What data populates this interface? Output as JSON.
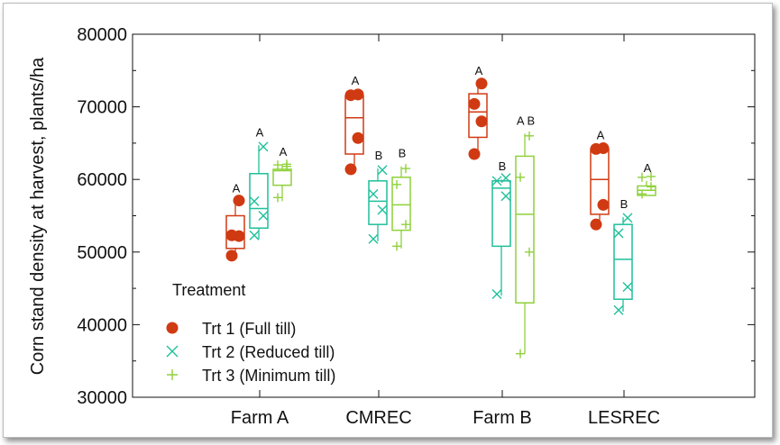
{
  "chart_data": {
    "type": "box",
    "ylabel": "Corn stand density at harvest, plants/ha",
    "ylim": [
      30000,
      80000
    ],
    "yticks": [
      30000,
      40000,
      50000,
      60000,
      70000,
      80000
    ],
    "categories": [
      "Farm A",
      "CMREC",
      "Farm B",
      "LESREC"
    ],
    "legend_title": "Treatment",
    "legend_position": "bottom-left",
    "series": [
      {
        "name": "Trt 1 (Full till)",
        "key": "t1",
        "marker": "circle",
        "color": "#d03a12",
        "groups": [
          {
            "q1": 50500,
            "median": 52500,
            "q3": 55000,
            "whisker_low": 49500,
            "whisker_high": 57000,
            "points": [
              49500,
              52200,
              52300,
              57100
            ],
            "letter": "A"
          },
          {
            "q1": 63500,
            "median": 68500,
            "q3": 71500,
            "whisker_low": 61500,
            "whisker_high": 71800,
            "points": [
              61400,
              65700,
              71600,
              71700
            ],
            "letter": "A"
          },
          {
            "q1": 65800,
            "median": 69300,
            "q3": 71800,
            "whisker_low": 63500,
            "whisker_high": 73200,
            "points": [
              63500,
              68000,
              70400,
              73200
            ],
            "letter": "A"
          },
          {
            "q1": 55200,
            "median": 60000,
            "q3": 64200,
            "whisker_low": 53800,
            "whisker_high": 64300,
            "points": [
              53800,
              56500,
              64200,
              64300
            ],
            "letter": "A"
          }
        ]
      },
      {
        "name": "Trt 2 (Reduced till)",
        "key": "t2",
        "marker": "cross",
        "color": "#1fbf9a",
        "groups": [
          {
            "q1": 53300,
            "median": 56000,
            "q3": 60800,
            "whisker_low": 51800,
            "whisker_high": 64700,
            "points": [
              52300,
              55000,
              57000,
              64500
            ],
            "letter": "A"
          },
          {
            "q1": 53800,
            "median": 57000,
            "q3": 59800,
            "whisker_low": 51500,
            "whisker_high": 61500,
            "points": [
              51800,
              55800,
              58000,
              61300
            ],
            "letter": "B"
          },
          {
            "q1": 50800,
            "median": 58800,
            "q3": 59800,
            "whisker_low": 44000,
            "whisker_high": 60000,
            "points": [
              44200,
              57700,
              59800,
              60200
            ],
            "letter": "B"
          },
          {
            "q1": 43500,
            "median": 49000,
            "q3": 53800,
            "whisker_low": 41800,
            "whisker_high": 54800,
            "points": [
              42000,
              45200,
              52600,
              54700
            ],
            "letter": "B"
          }
        ]
      },
      {
        "name": "Trt 3 (Minimum till)",
        "key": "t3",
        "marker": "plus",
        "color": "#8fd13a",
        "groups": [
          {
            "q1": 59200,
            "median": 61200,
            "q3": 61400,
            "whisker_low": 57000,
            "whisker_high": 62000,
            "points": [
              57500,
              61800,
              62000,
              62100
            ],
            "letter": "A"
          },
          {
            "q1": 53000,
            "median": 56500,
            "q3": 60300,
            "whisker_low": 50500,
            "whisker_high": 61800,
            "points": [
              50800,
              53800,
              59300,
              61500
            ],
            "letter": "B"
          },
          {
            "q1": 43000,
            "median": 55200,
            "q3": 63200,
            "whisker_low": 36000,
            "whisker_high": 66300,
            "points": [
              36000,
              50000,
              60300,
              66000
            ],
            "letter": "A B"
          },
          {
            "q1": 57800,
            "median": 58500,
            "q3": 59100,
            "whisker_low": 57800,
            "whisker_high": 59800,
            "points": [
              58000,
              59000,
              60300,
              60400
            ],
            "letter": "A"
          }
        ]
      }
    ]
  }
}
